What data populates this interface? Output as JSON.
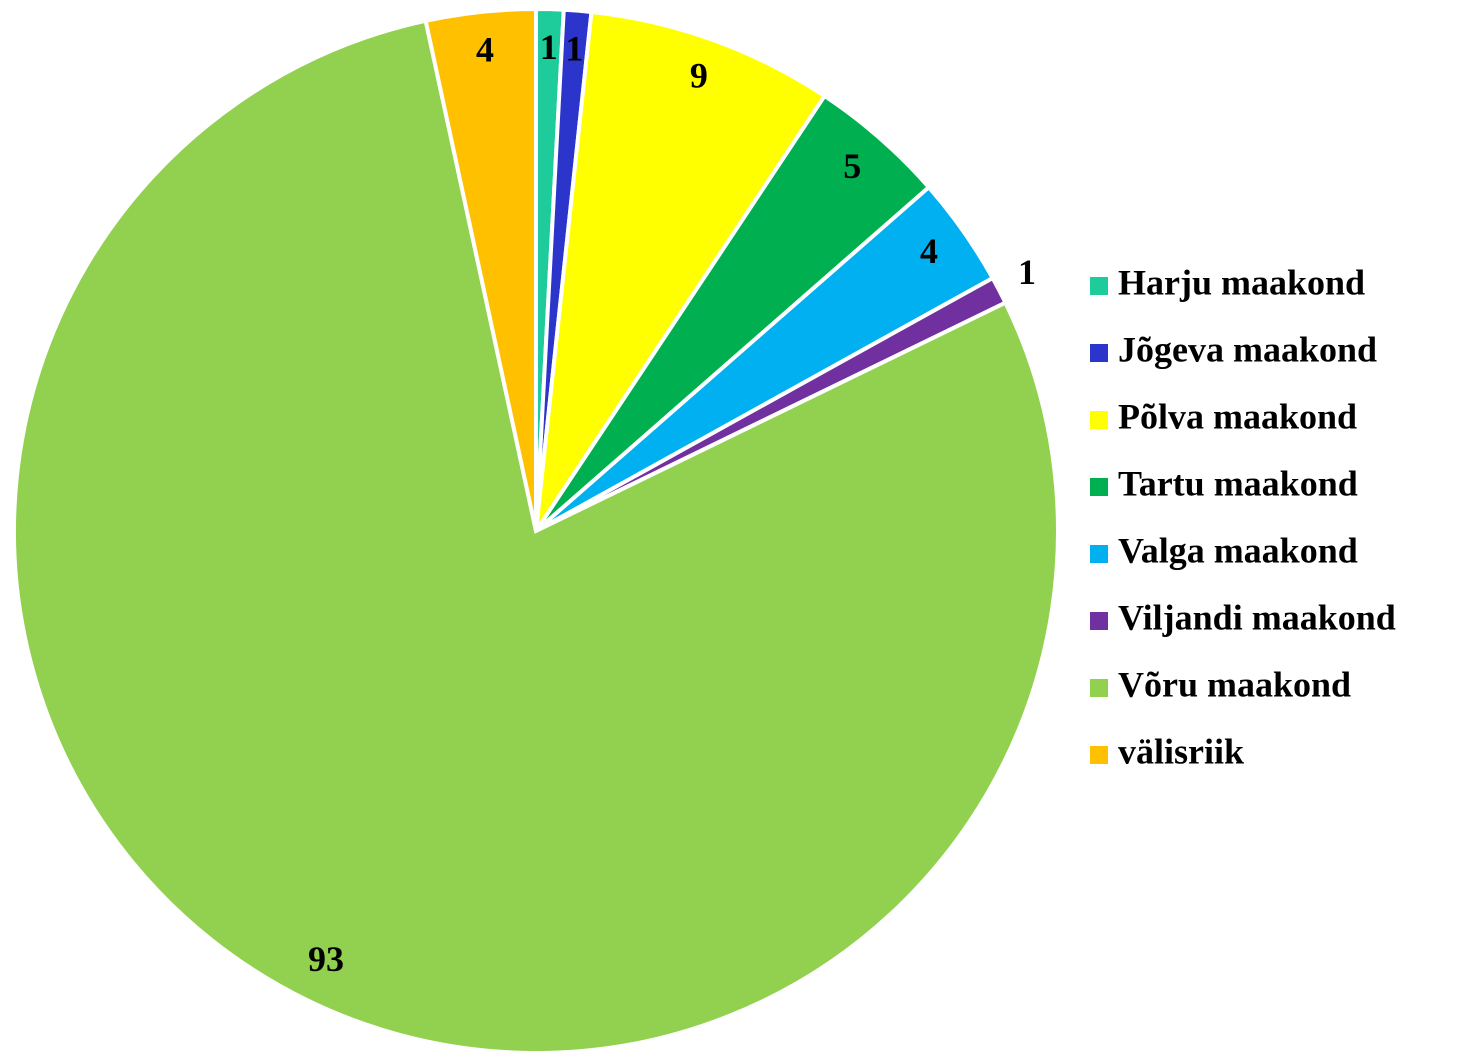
{
  "chart_data": {
    "type": "pie",
    "categories": [
      "Harju maakond",
      "Jõgeva maakond",
      "Põlva maakond",
      "Tartu maakond",
      "Valga maakond",
      "Viljandi maakond",
      "Võru maakond",
      "välisriik"
    ],
    "values": [
      1,
      1,
      9,
      5,
      4,
      1,
      93,
      4
    ],
    "colors": [
      "#1ecb9a",
      "#2b35cc",
      "#ffff00",
      "#00b050",
      "#00b0f0",
      "#7030a0",
      "#92d050",
      "#ffc000"
    ],
    "legend": "right"
  }
}
